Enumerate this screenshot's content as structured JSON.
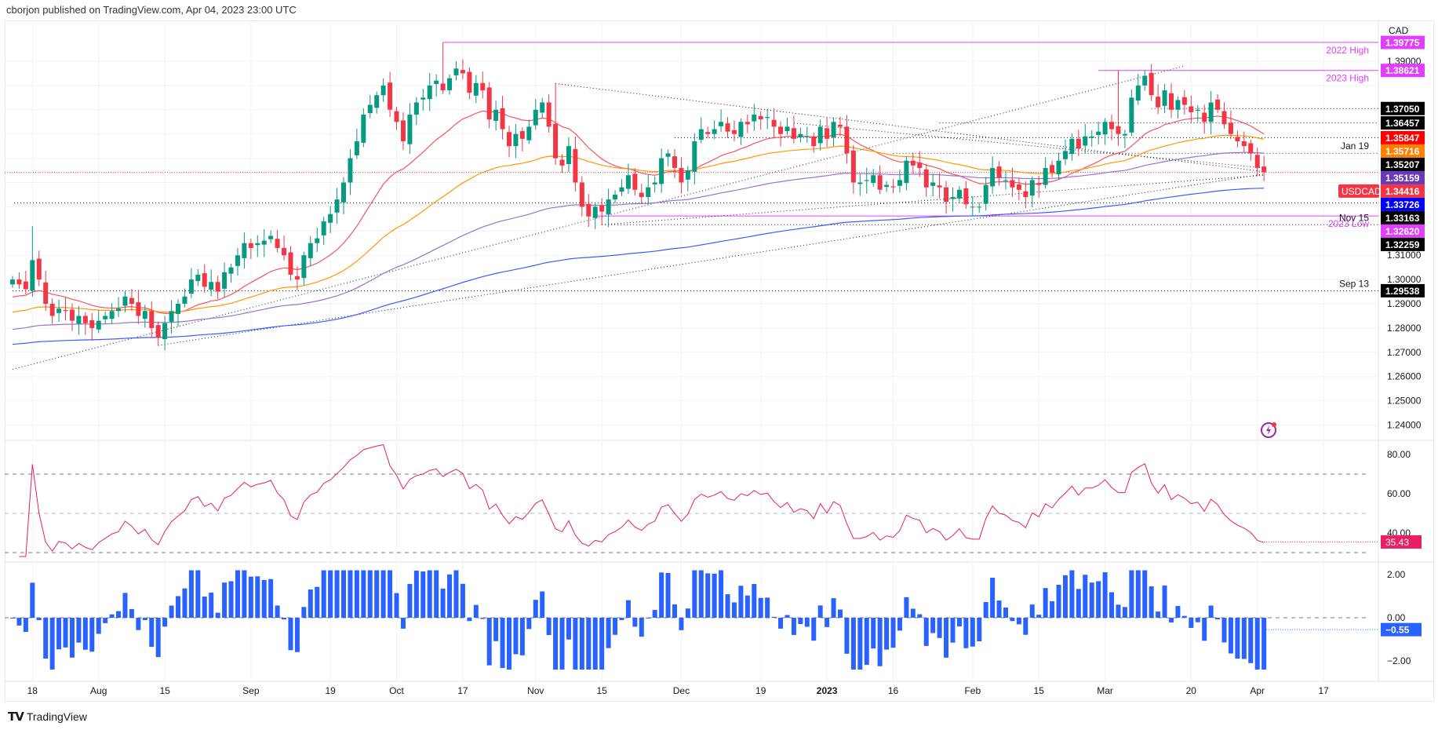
{
  "header": {
    "published": "cborjon published on TradingView.com, Apr 04, 2023 23:00 UTC"
  },
  "footer": {
    "brand": "TradingView"
  },
  "colors": {
    "up": "#089981",
    "down": "#f23645",
    "rsi": "#e91e63",
    "hist": "#2962ff",
    "magenta": "#e040fb"
  },
  "chart_data": {
    "type": "candlestick",
    "symbol": "USDCAD",
    "currency": "CAD",
    "first_date": "2022-07-13",
    "last_date": "2023-04-04",
    "closes": [
      1.3,
      1.298,
      1.296,
      1.308,
      1.3,
      1.29,
      1.285,
      1.288,
      1.287,
      1.283,
      1.285,
      1.282,
      1.28,
      1.283,
      1.285,
      1.287,
      1.288,
      1.293,
      1.29,
      1.285,
      1.287,
      1.28,
      1.276,
      1.282,
      1.287,
      1.29,
      1.293,
      1.3,
      1.302,
      1.297,
      1.299,
      1.295,
      1.303,
      1.305,
      1.31,
      1.315,
      1.313,
      1.315,
      1.316,
      1.318,
      1.313,
      1.31,
      1.302,
      1.3,
      1.31,
      1.315,
      1.317,
      1.324,
      1.327,
      1.333,
      1.34,
      1.35,
      1.357,
      1.368,
      1.372,
      1.376,
      1.38,
      1.37,
      1.365,
      1.357,
      1.368,
      1.373,
      1.375,
      1.38,
      1.382,
      1.378,
      1.383,
      1.387,
      1.385,
      1.377,
      1.381,
      1.378,
      1.366,
      1.37,
      1.362,
      1.355,
      1.36,
      1.358,
      1.363,
      1.37,
      1.373,
      1.363,
      1.35,
      1.347,
      1.355,
      1.34,
      1.33,
      1.326,
      1.33,
      1.328,
      1.333,
      1.335,
      1.338,
      1.343,
      1.337,
      1.334,
      1.338,
      1.34,
      1.35,
      1.352,
      1.346,
      1.34,
      1.345,
      1.357,
      1.362,
      1.36,
      1.362,
      1.365,
      1.361,
      1.36,
      1.365,
      1.364,
      1.368,
      1.366,
      1.367,
      1.363,
      1.36,
      1.363,
      1.358,
      1.36,
      1.359,
      1.355,
      1.363,
      1.358,
      1.365,
      1.363,
      1.352,
      1.34,
      1.34,
      1.341,
      1.343,
      1.337,
      1.339,
      1.338,
      1.341,
      1.349,
      1.347,
      1.346,
      1.338,
      1.34,
      1.338,
      1.332,
      1.334,
      1.337,
      1.331,
      1.33,
      1.33,
      1.339,
      1.346,
      1.342,
      1.341,
      1.338,
      1.337,
      1.334,
      1.341,
      1.339,
      1.346,
      1.344,
      1.349,
      1.353,
      1.358,
      1.354,
      1.359,
      1.359,
      1.361,
      1.365,
      1.362,
      1.36,
      1.36,
      1.375,
      1.38,
      1.384,
      1.376,
      1.371,
      1.378,
      1.37,
      1.374,
      1.372,
      1.369,
      1.37,
      1.365,
      1.373,
      1.37,
      1.364,
      1.36,
      1.357,
      1.355,
      1.352,
      1.346,
      1.3442
    ],
    "special_highs": [
      {
        "index": 65,
        "high": 1.39775
      },
      {
        "index": 82,
        "high": 1.3808
      },
      {
        "index": 167,
        "high": 1.38621
      },
      {
        "index": 3,
        "high": 1.322
      }
    ],
    "special_lows": [
      {
        "index": 22,
        "low": 1.2728
      },
      {
        "index": 43,
        "low": 1.29538
      },
      {
        "index": 89,
        "low": 1.32259
      },
      {
        "index": 145,
        "low": 1.3262
      }
    ],
    "moving_averages": [
      {
        "name": "MA20",
        "period": 20,
        "seed": 1.292,
        "color": "#f7525f",
        "last": "1.35847"
      },
      {
        "name": "MA50",
        "period": 50,
        "seed": 1.286,
        "color": "#ff9800",
        "last": "1.35716"
      },
      {
        "name": "MA100",
        "period": 100,
        "seed": 1.279,
        "color": "#9575cd",
        "last": "1.35159"
      },
      {
        "name": "MA200",
        "period": 200,
        "seed": 1.273,
        "color": "#3d5afe",
        "last": "1.33726"
      }
    ],
    "price_axis": {
      "min": 1.235,
      "max": 1.4,
      "ticks": [
        "1.39000",
        "1.31000",
        "1.30000",
        "1.29000",
        "1.28000",
        "1.27000",
        "1.26000",
        "1.25000",
        "1.24000"
      ]
    },
    "price_tags": [
      {
        "value": 1.39775,
        "text": "1.39775",
        "bg": "#e040fb"
      },
      {
        "value": 1.38621,
        "text": "1.38621",
        "bg": "#e040fb"
      },
      {
        "value": 1.3705,
        "text": "1.37050",
        "bg": "#000000"
      },
      {
        "value": 1.36457,
        "text": "1.36457",
        "bg": "#000000"
      },
      {
        "value": 1.35847,
        "text": "1.35847",
        "bg": "#ff0000"
      },
      {
        "value": 1.35716,
        "text": "1.35716",
        "bg": "#ff7f00"
      },
      {
        "value": 1.35207,
        "text": "1.35207",
        "bg": "#000000"
      },
      {
        "value": 1.35159,
        "text": "1.35159",
        "bg": "#673ab7"
      },
      {
        "value": 1.34416,
        "text": "1.34416",
        "bg": "#f23645"
      },
      {
        "value": 1.33726,
        "text": "1.33726",
        "bg": "#0000ff"
      },
      {
        "value": 1.33163,
        "text": "1.33163",
        "bg": "#000000"
      },
      {
        "value": 1.3262,
        "text": "1.32620",
        "bg": "#e040fb"
      },
      {
        "value": 1.32259,
        "text": "1.32259",
        "bg": "#000000"
      },
      {
        "value": 1.29538,
        "text": "1.29538",
        "bg": "#000000"
      }
    ],
    "symbol_tag": {
      "text": "USDCAD",
      "value": 1.34416
    },
    "horizontal_lines": [
      {
        "value": 1.39775,
        "from_index": 65,
        "style": "solid",
        "color": "#e040fb",
        "label": "2022 High"
      },
      {
        "value": 1.38621,
        "from_index": 164,
        "style": "solid",
        "color": "#e040fb",
        "label": "2023 High"
      },
      {
        "value": 1.3262,
        "from_index": 88,
        "style": "solid",
        "color": "#e040fb",
        "label": "2023 Low"
      },
      {
        "value": 1.3705,
        "from_index": 172,
        "style": "dotted",
        "color": "#131722",
        "label": ""
      },
      {
        "value": 1.36457,
        "from_index": 140,
        "style": "dotted",
        "color": "#131722",
        "label": ""
      },
      {
        "value": 1.35847,
        "from_index": 100,
        "style": "dotted",
        "color": "#131722",
        "label": ""
      },
      {
        "value": 1.35207,
        "from_index": 133,
        "style": "dotted",
        "color": "#131722",
        "label": "Jan 19"
      },
      {
        "value": 1.33163,
        "from_index": 0,
        "style": "none",
        "color": "#131722",
        "label": ""
      },
      {
        "value": 1.32259,
        "from_index": 89,
        "style": "dotted",
        "color": "#131722",
        "label": "Nov 15"
      },
      {
        "value": 1.29538,
        "from_index": 0,
        "style": "dotted",
        "color": "#131722",
        "label": "Sep 13"
      }
    ],
    "trend_lines": [
      {
        "from": [
          0,
          1.263
        ],
        "to": [
          177,
          1.388
        ]
      },
      {
        "from": [
          82,
          1.3808
        ],
        "to": [
          189,
          1.3445
        ]
      },
      {
        "from": [
          89,
          1.3226
        ],
        "to": [
          189,
          1.343
        ]
      },
      {
        "from": [
          22,
          1.2728
        ],
        "to": [
          189,
          1.3435
        ]
      },
      {
        "from": [
          118,
          1.3645
        ],
        "to": [
          189,
          1.346
        ]
      }
    ],
    "x_labels": [
      {
        "index": 3,
        "text": "18"
      },
      {
        "index": 13,
        "text": "Aug"
      },
      {
        "index": 23,
        "text": "15"
      },
      {
        "index": 36,
        "text": "Sep"
      },
      {
        "index": 48,
        "text": "19"
      },
      {
        "index": 58,
        "text": "Oct"
      },
      {
        "index": 68,
        "text": "17"
      },
      {
        "index": 79,
        "text": "Nov"
      },
      {
        "index": 89,
        "text": "15"
      },
      {
        "index": 101,
        "text": "Dec"
      },
      {
        "index": 113,
        "text": "19"
      },
      {
        "index": 123,
        "text": "2023"
      },
      {
        "index": 133,
        "text": "16"
      },
      {
        "index": 145,
        "text": "Feb"
      },
      {
        "index": 155,
        "text": "15"
      },
      {
        "index": 165,
        "text": "Mar"
      },
      {
        "index": 178,
        "text": "20"
      },
      {
        "index": 188,
        "text": "Apr"
      },
      {
        "index": 198,
        "text": "17"
      }
    ],
    "rsi": {
      "period": 14,
      "ticks": [
        "80.00",
        "60.00",
        "40.00"
      ],
      "levels": [
        70,
        50,
        30
      ],
      "last": "35.43"
    },
    "momentum": {
      "ticks": [
        "2.00",
        "0.00",
        "-2.00"
      ],
      "last": "-0.55"
    }
  }
}
